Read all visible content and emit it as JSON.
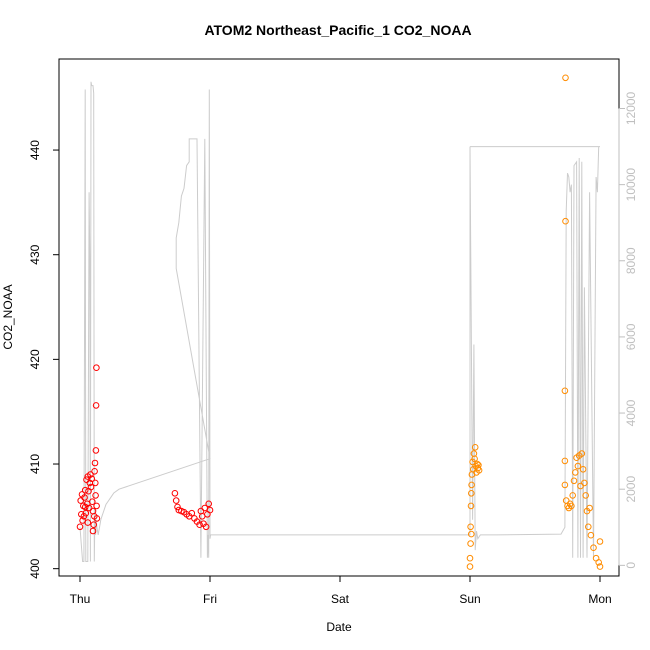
{
  "chart_data": {
    "type": "scatter",
    "title": "ATOM2 Northeast_Pacific_1 CO2_NOAA",
    "xlabel": "Date",
    "ylabel": "CO2_NOAA",
    "xlim": [
      0,
      4.1
    ],
    "ylim": [
      399.3,
      448.7
    ],
    "y2lim": [
      -280,
      13300
    ],
    "x_ticks": [
      {
        "value": 0,
        "label": "Thu"
      },
      {
        "value": 1,
        "label": "Fri"
      },
      {
        "value": 2,
        "label": "Sat"
      },
      {
        "value": 3,
        "label": "Sun"
      },
      {
        "value": 4,
        "label": "Mon"
      }
    ],
    "y_ticks": [
      400,
      410,
      420,
      430,
      440
    ],
    "y2_ticks": [
      0,
      2000,
      4000,
      6000,
      8000,
      10000,
      12000
    ],
    "grid": false,
    "legend": "none",
    "colors": {
      "red_series": "#ff0000",
      "orange_series": "#ff8c00",
      "altitude_line": "#cccccc",
      "right_axis": "#bfbfbf"
    },
    "altitude_line": {
      "description_axis": "right",
      "x": [
        0.0,
        0.02,
        0.03,
        0.04,
        0.045,
        0.06,
        0.07,
        0.075,
        0.08,
        0.085,
        0.09,
        0.1,
        0.105,
        0.11,
        0.115,
        0.12,
        0.125,
        0.13,
        0.14,
        0.145,
        0.15,
        0.155,
        0.16,
        0.17,
        0.18,
        0.19,
        0.2,
        0.22,
        0.24,
        0.26,
        0.3,
        1.0,
        0.74,
        0.74,
        0.76,
        0.78,
        0.8,
        0.82,
        0.84,
        0.84,
        0.9,
        0.93,
        0.96,
        0.98,
        0.985,
        0.99,
        0.995,
        1.0,
        1.005,
        1.01,
        1.01,
        1.6,
        2.5,
        3.0,
        3.0,
        3.02,
        3.03,
        3.04,
        3.05,
        3.06,
        3.08,
        3.2,
        3.7,
        3.73,
        3.74,
        3.75,
        3.76,
        3.77,
        3.78,
        3.79,
        3.8,
        3.82,
        3.83,
        3.84,
        3.85,
        3.86,
        3.87,
        3.88,
        3.9,
        3.92,
        3.95,
        3.97,
        3.98,
        3.99,
        4.0,
        4.0,
        3.4,
        3.0
      ],
      "y": [
        1000,
        100,
        100,
        12500,
        100,
        100,
        9800,
        8000,
        100,
        12700,
        12600,
        12600,
        12400,
        100,
        1500,
        800,
        1200,
        1000,
        800,
        900,
        1000,
        1100,
        1200,
        1300,
        1400,
        1500,
        1600,
        1700,
        1800,
        1900,
        2000,
        2800,
        7800,
        8600,
        9000,
        9700,
        9900,
        10500,
        10600,
        11200,
        11200,
        200,
        11200,
        200,
        800,
        200,
        12500,
        700,
        800,
        800,
        800,
        800,
        800,
        800,
        11000,
        1200,
        5800,
        400,
        900,
        700,
        800,
        800,
        820,
        1000,
        9300,
        10300,
        10200,
        9800,
        10000,
        200,
        10500,
        10600,
        200,
        10700,
        200,
        10600,
        200,
        7300,
        200,
        9800,
        200,
        10200,
        9800,
        11000,
        11000,
        11000,
        11000,
        11000
      ]
    },
    "series": [
      {
        "color": "#ff0000",
        "points": [
          {
            "x": 0.0,
            "y": 404.0
          },
          {
            "x": 0.005,
            "y": 406.5
          },
          {
            "x": 0.01,
            "y": 405.2
          },
          {
            "x": 0.015,
            "y": 407.1
          },
          {
            "x": 0.02,
            "y": 404.6
          },
          {
            "x": 0.025,
            "y": 406.0
          },
          {
            "x": 0.03,
            "y": 405.0
          },
          {
            "x": 0.035,
            "y": 406.8
          },
          {
            "x": 0.04,
            "y": 407.5
          },
          {
            "x": 0.045,
            "y": 405.3
          },
          {
            "x": 0.05,
            "y": 408.5
          },
          {
            "x": 0.055,
            "y": 406.2
          },
          {
            "x": 0.06,
            "y": 408.8
          },
          {
            "x": 0.065,
            "y": 407.4
          },
          {
            "x": 0.07,
            "y": 405.8
          },
          {
            "x": 0.075,
            "y": 408.2
          },
          {
            "x": 0.08,
            "y": 409.0
          },
          {
            "x": 0.085,
            "y": 407.8
          },
          {
            "x": 0.09,
            "y": 408.6
          },
          {
            "x": 0.095,
            "y": 406.4
          },
          {
            "x": 0.1,
            "y": 405.5
          },
          {
            "x": 0.105,
            "y": 404.2
          },
          {
            "x": 0.11,
            "y": 405.0
          },
          {
            "x": 0.112,
            "y": 409.3
          },
          {
            "x": 0.115,
            "y": 410.1
          },
          {
            "x": 0.118,
            "y": 408.2
          },
          {
            "x": 0.12,
            "y": 407.0
          },
          {
            "x": 0.122,
            "y": 411.3
          },
          {
            "x": 0.124,
            "y": 415.6
          },
          {
            "x": 0.126,
            "y": 419.2
          },
          {
            "x": 0.128,
            "y": 406.0
          },
          {
            "x": 0.13,
            "y": 404.8
          },
          {
            "x": 0.1,
            "y": 403.6
          },
          {
            "x": 0.06,
            "y": 404.4
          },
          {
            "x": 0.04,
            "y": 405.9
          },
          {
            "x": 0.73,
            "y": 407.2
          },
          {
            "x": 0.74,
            "y": 406.5
          },
          {
            "x": 0.75,
            "y": 405.9
          },
          {
            "x": 0.76,
            "y": 405.6
          },
          {
            "x": 0.78,
            "y": 405.5
          },
          {
            "x": 0.8,
            "y": 405.4
          },
          {
            "x": 0.82,
            "y": 405.2
          },
          {
            "x": 0.84,
            "y": 405.0
          },
          {
            "x": 0.86,
            "y": 405.3
          },
          {
            "x": 0.88,
            "y": 404.8
          },
          {
            "x": 0.9,
            "y": 404.5
          },
          {
            "x": 0.92,
            "y": 404.2
          },
          {
            "x": 0.93,
            "y": 405.5
          },
          {
            "x": 0.94,
            "y": 405.0
          },
          {
            "x": 0.95,
            "y": 404.3
          },
          {
            "x": 0.96,
            "y": 405.8
          },
          {
            "x": 0.97,
            "y": 404.0
          },
          {
            "x": 0.98,
            "y": 405.2
          },
          {
            "x": 0.99,
            "y": 406.2
          },
          {
            "x": 1.0,
            "y": 405.6
          }
        ]
      },
      {
        "color": "#ff8c00",
        "points": [
          {
            "x": 3.0,
            "y": 400.2
          },
          {
            "x": 3.0,
            "y": 401.0
          },
          {
            "x": 3.005,
            "y": 402.4
          },
          {
            "x": 3.005,
            "y": 404.0
          },
          {
            "x": 3.008,
            "y": 406.0
          },
          {
            "x": 3.01,
            "y": 407.2
          },
          {
            "x": 3.01,
            "y": 403.3
          },
          {
            "x": 3.012,
            "y": 408.0
          },
          {
            "x": 3.015,
            "y": 409.0
          },
          {
            "x": 3.02,
            "y": 410.2
          },
          {
            "x": 3.025,
            "y": 409.5
          },
          {
            "x": 3.03,
            "y": 411.0
          },
          {
            "x": 3.035,
            "y": 410.5
          },
          {
            "x": 3.04,
            "y": 411.6
          },
          {
            "x": 3.045,
            "y": 409.8
          },
          {
            "x": 3.05,
            "y": 409.2
          },
          {
            "x": 3.055,
            "y": 410.0
          },
          {
            "x": 3.06,
            "y": 409.6
          },
          {
            "x": 3.065,
            "y": 409.9
          },
          {
            "x": 3.07,
            "y": 409.4
          },
          {
            "x": 3.73,
            "y": 408.0
          },
          {
            "x": 3.73,
            "y": 410.3
          },
          {
            "x": 3.73,
            "y": 417.0
          },
          {
            "x": 3.735,
            "y": 433.2
          },
          {
            "x": 3.735,
            "y": 446.9
          },
          {
            "x": 3.74,
            "y": 406.5
          },
          {
            "x": 3.75,
            "y": 406.0
          },
          {
            "x": 3.76,
            "y": 405.8
          },
          {
            "x": 3.77,
            "y": 406.2
          },
          {
            "x": 3.78,
            "y": 406.0
          },
          {
            "x": 3.79,
            "y": 407.0
          },
          {
            "x": 3.8,
            "y": 408.4
          },
          {
            "x": 3.81,
            "y": 409.2
          },
          {
            "x": 3.82,
            "y": 410.6
          },
          {
            "x": 3.83,
            "y": 409.8
          },
          {
            "x": 3.84,
            "y": 410.8
          },
          {
            "x": 3.85,
            "y": 407.9
          },
          {
            "x": 3.86,
            "y": 411.0
          },
          {
            "x": 3.87,
            "y": 409.5
          },
          {
            "x": 3.88,
            "y": 408.2
          },
          {
            "x": 3.89,
            "y": 407.0
          },
          {
            "x": 3.9,
            "y": 405.5
          },
          {
            "x": 3.91,
            "y": 404.0
          },
          {
            "x": 3.92,
            "y": 405.8
          },
          {
            "x": 3.93,
            "y": 403.2
          },
          {
            "x": 3.95,
            "y": 402.0
          },
          {
            "x": 3.97,
            "y": 401.0
          },
          {
            "x": 3.99,
            "y": 400.6
          },
          {
            "x": 4.0,
            "y": 400.2
          },
          {
            "x": 4.0,
            "y": 402.6
          }
        ]
      }
    ]
  }
}
